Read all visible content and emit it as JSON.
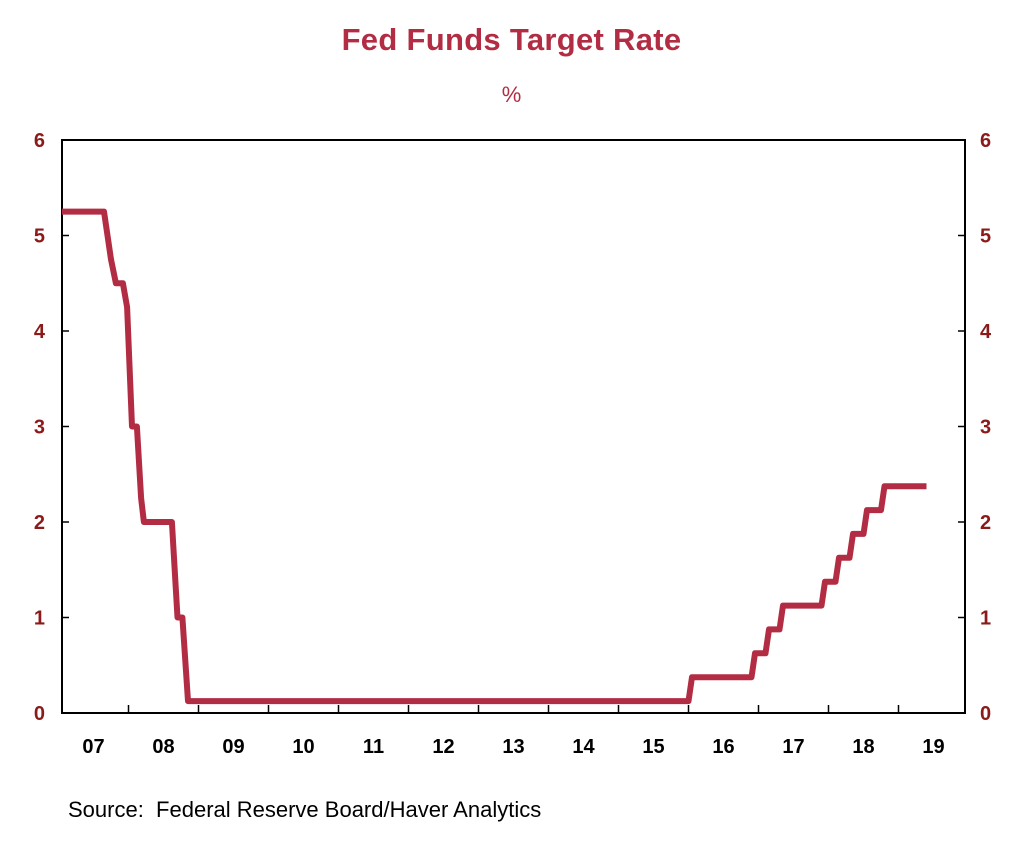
{
  "chart_data": {
    "type": "line",
    "title": "Fed Funds Target Rate",
    "subtitle": "%",
    "source": "Source:  Federal Reserve Board/Haver Analytics",
    "xlabel": "",
    "ylabel": "%",
    "ylim": [
      0,
      6
    ],
    "xlim": [
      2006.55,
      2019.45
    ],
    "grid": false,
    "legend": "none",
    "y_ticks": [
      0,
      1,
      2,
      3,
      4,
      5,
      6
    ],
    "y_tick_labels": [
      "0",
      "1",
      "2",
      "3",
      "4",
      "5",
      "6"
    ],
    "x_tick_labels": [
      "07",
      "08",
      "09",
      "10",
      "11",
      "12",
      "13",
      "14",
      "15",
      "16",
      "17",
      "18",
      "19"
    ],
    "x_tick_centers": [
      2007.0,
      2008.0,
      2009.0,
      2010.0,
      2011.0,
      2012.0,
      2013.0,
      2014.0,
      2015.0,
      2016.0,
      2017.0,
      2018.0,
      2019.0
    ],
    "colors": {
      "series": "#b22d44",
      "title": "#b22d44",
      "axis_labels": "#8b1a1a",
      "axis": "#000000"
    },
    "series": [
      {
        "name": "Fed Funds Target Rate",
        "x": [
          2006.55,
          2007.15,
          2007.25,
          2007.32,
          2007.42,
          2007.48,
          2007.55,
          2007.62,
          2007.68,
          2007.72,
          2007.78,
          2008.12,
          2008.2,
          2008.27,
          2008.35,
          2008.42,
          2008.5,
          2009.0,
          2015.5,
          2015.55,
          2016.4,
          2016.45,
          2016.6,
          2016.65,
          2016.8,
          2016.85,
          2017.4,
          2017.45,
          2017.6,
          2017.65,
          2017.8,
          2017.85,
          2018.0,
          2018.05,
          2018.25,
          2018.3,
          2018.45,
          2018.5,
          2018.9
        ],
        "values": [
          5.25,
          5.25,
          4.75,
          4.5,
          4.5,
          4.25,
          3.0,
          3.0,
          2.25,
          2.0,
          2.0,
          2.0,
          1.0,
          1.0,
          0.125,
          0.125,
          0.125,
          0.125,
          0.125,
          0.375,
          0.375,
          0.625,
          0.625,
          0.875,
          0.875,
          1.125,
          1.125,
          1.375,
          1.375,
          1.625,
          1.625,
          1.875,
          1.875,
          2.125,
          2.125,
          2.375,
          2.375,
          2.375,
          2.375
        ]
      }
    ]
  }
}
